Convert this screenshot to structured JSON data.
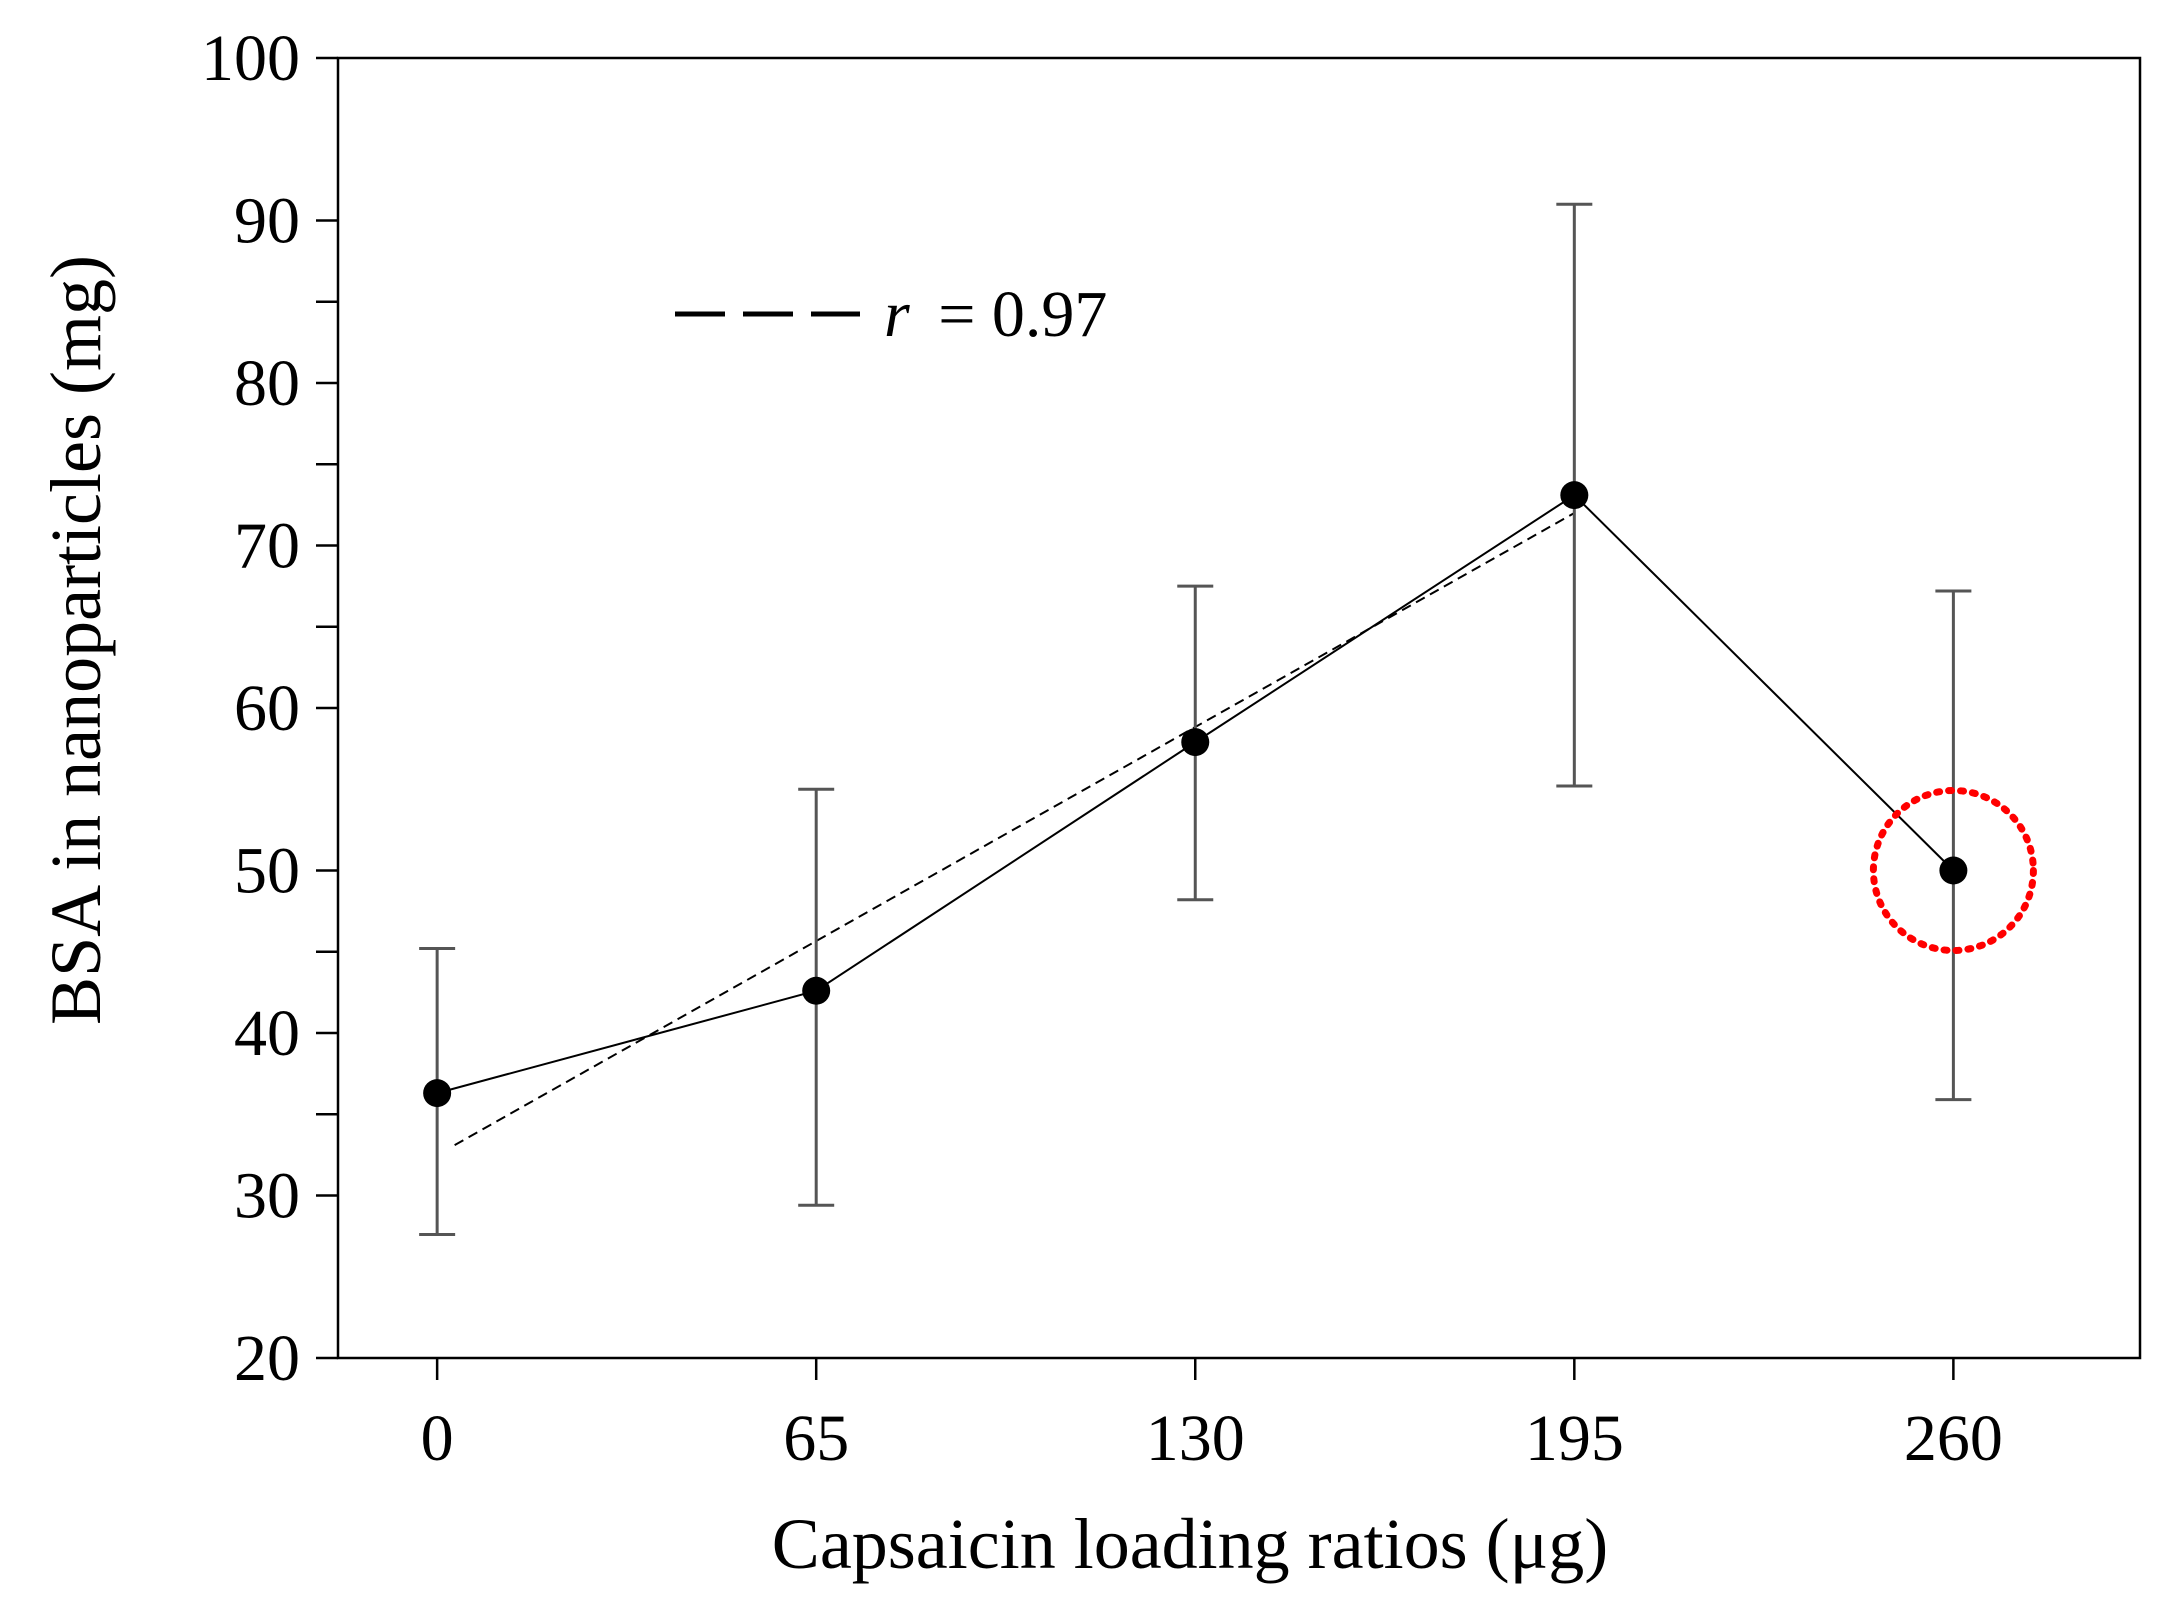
{
  "chart_data": {
    "type": "line",
    "title": "",
    "xlabel": "Capsaicin loading ratios (μg)",
    "ylabel": "BSA in nanoparticles (mg)",
    "categories": [
      "0",
      "65",
      "130",
      "195",
      "260"
    ],
    "x": [
      0,
      65,
      130,
      195,
      260
    ],
    "xlim": [
      -17,
      292
    ],
    "ylim": [
      20,
      100
    ],
    "yticks": [
      20,
      30,
      40,
      50,
      60,
      70,
      80,
      90,
      100
    ],
    "yticks_minor": [
      35,
      45,
      65,
      75,
      85
    ],
    "series": [
      {
        "name": "BSA",
        "values": [
          36.3,
          42.6,
          57.9,
          73.1,
          50.0
        ],
        "error_upper": [
          45.2,
          55.0,
          67.5,
          91.0,
          67.2
        ],
        "error_lower": [
          27.6,
          29.4,
          48.2,
          55.2,
          35.9
        ]
      }
    ],
    "fit": {
      "name": "linear fit",
      "x_range": [
        3,
        195
      ],
      "y_range": [
        33.1,
        72.0
      ],
      "label_prefix": "r",
      "label_value": "= 0.97"
    },
    "highlight": {
      "x": 260,
      "y": 50,
      "color": "#ff0000",
      "shape": "dotted-circle"
    },
    "legend": {
      "position": "top-left"
    },
    "colors": {
      "axis": "#000000",
      "series": "#000000",
      "error_bar": "#555555"
    },
    "grid": false
  }
}
